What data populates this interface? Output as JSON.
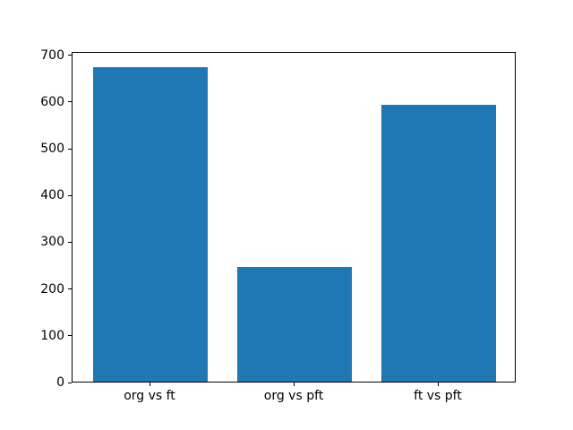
{
  "figure": {
    "background": "#ffffff",
    "spine_color": "#000000",
    "tick_color": "#000000",
    "text_color": "#000000"
  },
  "chart_data": {
    "type": "bar",
    "categories": [
      "org vs ft",
      "org vs pft",
      "ft vs pft"
    ],
    "values": [
      673,
      246,
      593
    ],
    "title": "",
    "xlabel": "",
    "ylabel": "",
    "ylim": [
      0,
      707
    ],
    "yticks": [
      0,
      100,
      200,
      300,
      400,
      500,
      600,
      700
    ],
    "xlim": [
      -0.54,
      2.54
    ],
    "bar_width": 0.8,
    "bar_color": "#1f77b4",
    "grid": false,
    "legend": null
  }
}
